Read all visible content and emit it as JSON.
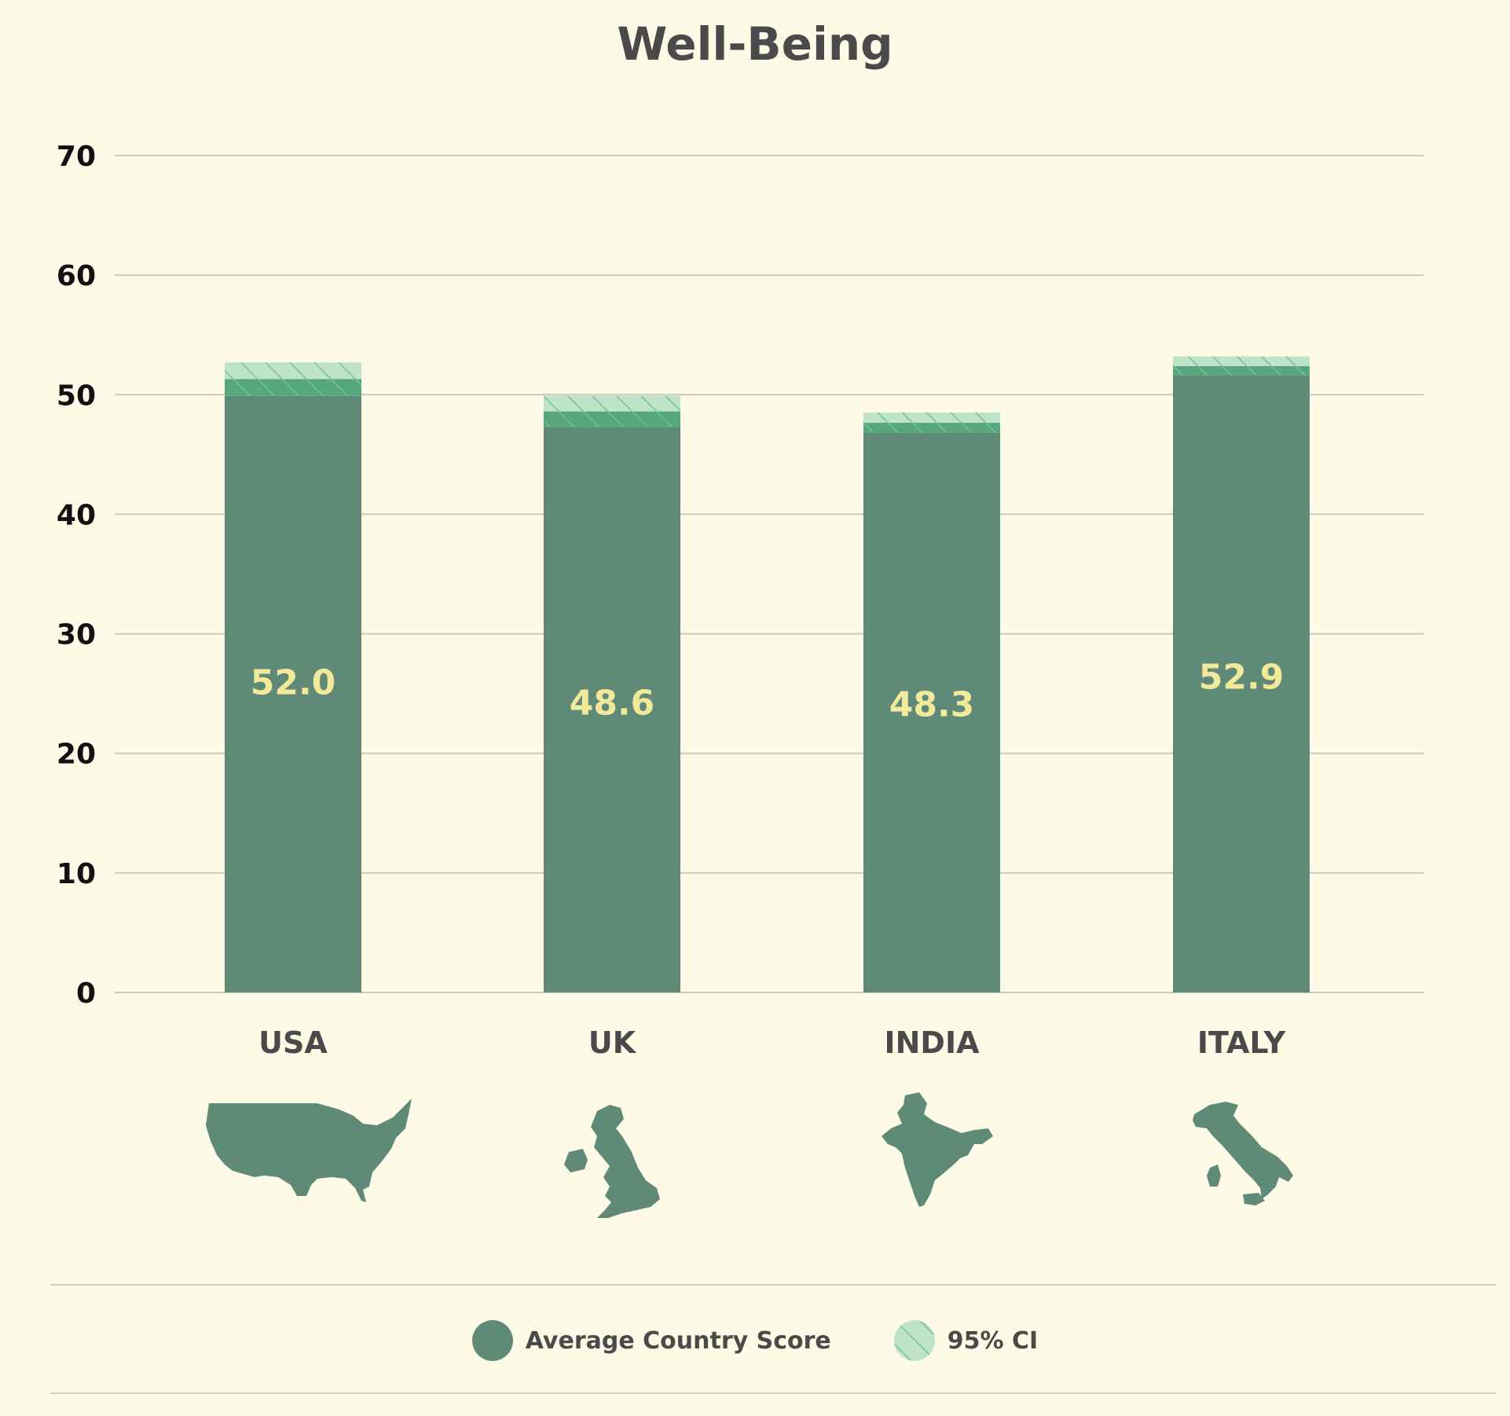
{
  "chart_data": {
    "type": "bar",
    "title": "Well-Being",
    "categories": [
      "USA",
      "UK",
      "INDIA",
      "ITALY"
    ],
    "values": [
      52.0,
      48.6,
      48.3,
      52.9
    ],
    "value_labels": [
      "52.0",
      "48.6",
      "48.3",
      "52.9"
    ],
    "ci_lower": [
      49.9,
      47.3,
      46.8,
      51.6
    ],
    "ci_upper": [
      52.7,
      49.9,
      48.5,
      53.2
    ],
    "ylim": [
      0,
      70
    ],
    "yticks": [
      0,
      10,
      20,
      30,
      40,
      50,
      60,
      70
    ],
    "grid": true,
    "legend": {
      "placement": "bottom",
      "items": [
        "Average Country Score",
        "95% CI"
      ]
    },
    "colors": {
      "bar": "#5e8a77",
      "ci_light": "#bfe3c8",
      "ci_dark": "#58a67e",
      "hatch": "#6cc596",
      "value_label": "#f3e99a",
      "grid": "#c9c9bd",
      "background": "#fdfbe6"
    }
  },
  "icons": [
    "usa-map-icon",
    "uk-map-icon",
    "india-map-icon",
    "italy-map-icon"
  ]
}
